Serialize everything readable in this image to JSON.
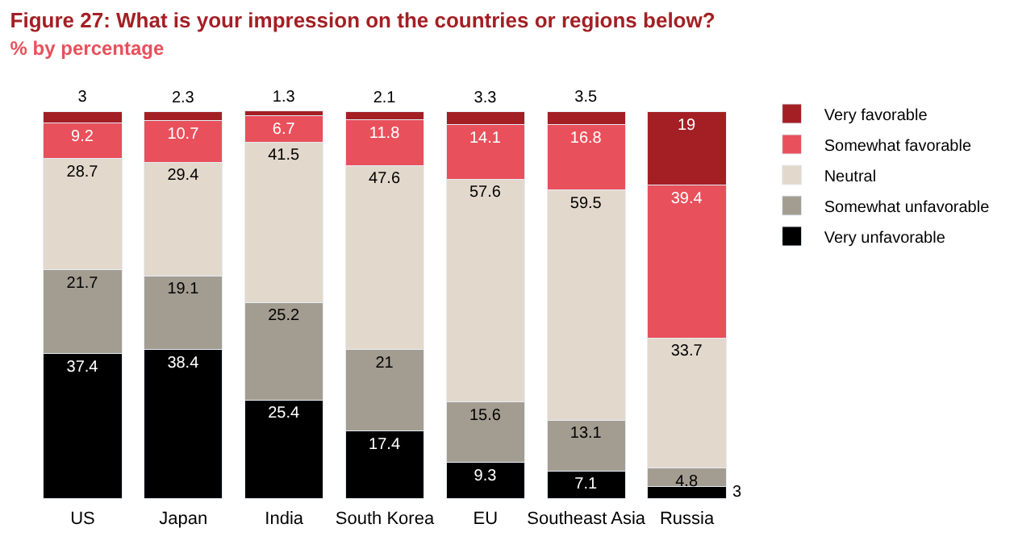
{
  "chart_data": {
    "type": "bar",
    "stacked": true,
    "data_labels": true,
    "legend": "right",
    "title": "Figure 27: What is your impression on the countries or regions below?",
    "subtitle": "% by percentage",
    "categories": [
      "US",
      "Japan",
      "India",
      "South Korea",
      "EU",
      "Southeast Asia",
      "Russia"
    ],
    "series": [
      {
        "name": "Very unfavorable",
        "color": "#000000",
        "values": [
          37.4,
          38.4,
          25.4,
          17.4,
          9.3,
          7.1,
          3
        ]
      },
      {
        "name": "Somewhat unfavorable",
        "color": "#a39d91",
        "values": [
          21.7,
          19.1,
          25.2,
          21,
          15.6,
          13.1,
          4.8
        ]
      },
      {
        "name": "Neutral",
        "color": "#e2d9cc",
        "values": [
          28.7,
          29.4,
          41.5,
          47.6,
          57.6,
          59.5,
          33.7
        ]
      },
      {
        "name": "Somewhat favorable",
        "color": "#e8505b",
        "values": [
          9.2,
          10.7,
          6.7,
          11.8,
          14.1,
          16.8,
          39.4
        ]
      },
      {
        "name": "Very favorable",
        "color": "#a31f24",
        "values": [
          3,
          2.3,
          1.3,
          2.1,
          3.3,
          3.5,
          19
        ]
      }
    ]
  }
}
